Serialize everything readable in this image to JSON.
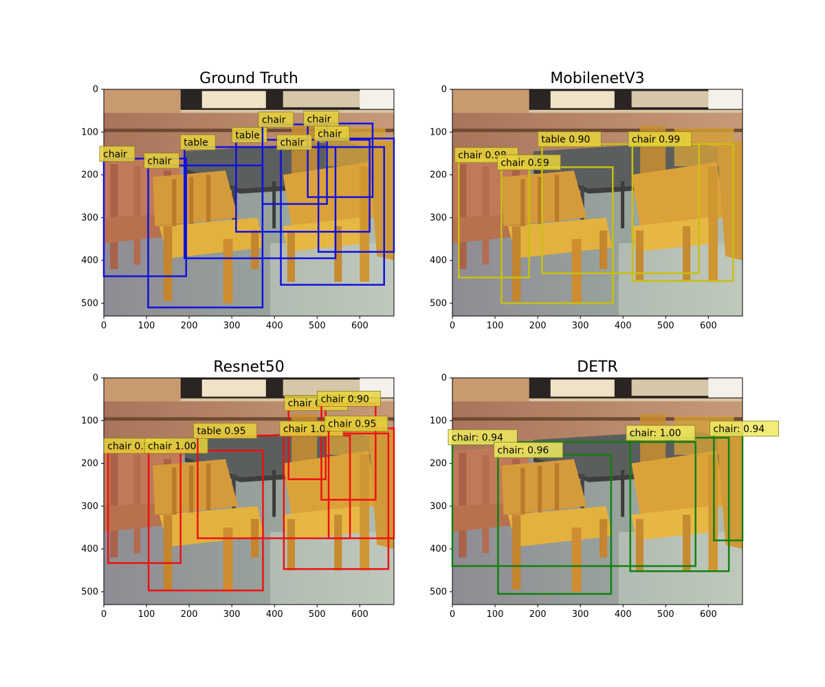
{
  "figure": {
    "image_size": [
      680,
      530
    ],
    "x_ticks": [
      0,
      100,
      200,
      300,
      400,
      500,
      600
    ],
    "y_ticks": [
      0,
      100,
      200,
      300,
      400,
      500
    ]
  },
  "panels": [
    {
      "title": "Ground Truth",
      "box_color": "#1010e0",
      "label_fill": "#e6d23c",
      "boxes": [
        {
          "label": "chair",
          "box": [
            0,
            162,
            193,
            437
          ]
        },
        {
          "label": "chair",
          "box": [
            104,
            178,
            372,
            510
          ]
        },
        {
          "label": "table",
          "box": [
            189,
            135,
            543,
            395
          ]
        },
        {
          "label": "table",
          "box": [
            310,
            118,
            623,
            333
          ]
        },
        {
          "label": "chair",
          "box": [
            372,
            82,
            523,
            268
          ]
        },
        {
          "label": "chair",
          "box": [
            478,
            80,
            630,
            252
          ]
        },
        {
          "label": "chair",
          "box": [
            415,
            135,
            657,
            457
          ]
        },
        {
          "label": "chair",
          "box": [
            503,
            115,
            680,
            380
          ]
        }
      ]
    },
    {
      "title": "MobilenetV3",
      "box_color": "#c8c010",
      "label_fill": "#e6d23c",
      "boxes": [
        {
          "label": "chair 0.98",
          "box": [
            15,
            165,
            180,
            440
          ]
        },
        {
          "label": "chair 0.99",
          "box": [
            115,
            182,
            376,
            500
          ]
        },
        {
          "label": "table 0.90",
          "box": [
            210,
            128,
            578,
            430
          ]
        },
        {
          "label": "chair 0.99",
          "box": [
            422,
            128,
            658,
            448
          ]
        }
      ]
    },
    {
      "title": "Resnet50",
      "box_color": "#ee1010",
      "label_fill": "#e6d23c",
      "boxes": [
        {
          "label": "chair 0.92",
          "box": [
            10,
            170,
            180,
            433
          ]
        },
        {
          "label": "chair 1.00",
          "box": [
            105,
            170,
            373,
            497
          ]
        },
        {
          "label": "table 0.95",
          "box": [
            220,
            135,
            577,
            375
          ]
        },
        {
          "label": "chair 0.87",
          "box": [
            433,
            70,
            520,
            237
          ]
        },
        {
          "label": "chair 0.90",
          "box": [
            510,
            60,
            637,
            285
          ]
        },
        {
          "label": "chair 1.00",
          "box": [
            422,
            130,
            667,
            447
          ]
        },
        {
          "label": "chair 0.95",
          "box": [
            527,
            118,
            680,
            375
          ]
        }
      ]
    },
    {
      "title": "DETR",
      "box_color": "#108010",
      "label_fill": "#f0ea60",
      "boxes": [
        {
          "label": "chair: 0.94",
          "box": [
            0,
            150,
            570,
            440
          ]
        },
        {
          "label": "chair: 0.96",
          "box": [
            107,
            180,
            372,
            505
          ]
        },
        {
          "label": "chair: 1.00",
          "box": [
            417,
            140,
            648,
            452
          ]
        },
        {
          "label": "chair: 0.94",
          "box": [
            613,
            130,
            680,
            380
          ]
        }
      ]
    }
  ]
}
